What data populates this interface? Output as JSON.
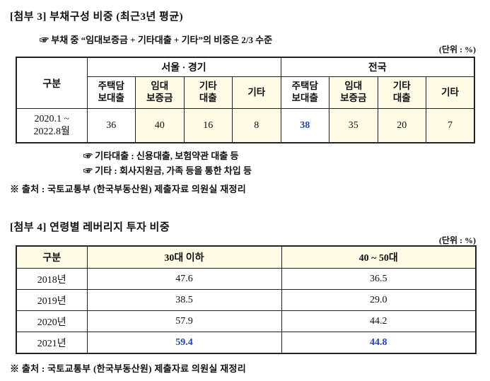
{
  "colors": {
    "highlight_bg": "#fffce6",
    "accent_text": "#2442c8"
  },
  "section1": {
    "title": "[첨부 3] 부채구성 비중 (최근3년 평균)",
    "note": "☞ 부채 중 “임대보증금 + 기타대출 + 기타”의 비중은 2/3 수준",
    "unit": "(단위 : %)",
    "table": {
      "corner": "구분",
      "regions": [
        "서울 · 경기",
        "전국"
      ],
      "sub_headers": [
        "주택담\n보대출",
        "임대\n보증금",
        "기타\n대출",
        "기타"
      ],
      "row_label": "2020.1 ~\n2022.8월",
      "seoul_values": [
        "36",
        "40",
        "16",
        "8"
      ],
      "nation_values": [
        "38",
        "35",
        "20",
        "7"
      ]
    },
    "footnotes": [
      "☞ 기타대출 : 신용대출, 보험약관 대출 등",
      "☞ 기타 : 회사지원금, 가족 등을 통한 차입 등"
    ],
    "source": "※ 출처 : 국토교통부 (한국부동산원) 제출자료 의원실 재정리"
  },
  "section2": {
    "title": "[첨부 4] 연령별 레버리지 투자 비중",
    "unit": "(단위 : %)",
    "table": {
      "headers": [
        "구분",
        "30대 이하",
        "40 ~ 50대"
      ],
      "rows": [
        {
          "label": "2018년",
          "under30": "47.6",
          "age4050": "36.5"
        },
        {
          "label": "2019년",
          "under30": "38.5",
          "age4050": "29.0"
        },
        {
          "label": "2020년",
          "under30": "57.9",
          "age4050": "44.2"
        },
        {
          "label": "2021년",
          "under30": "59.4",
          "age4050": "44.8"
        }
      ]
    },
    "source": "※ 출처 : 국토교통부 (한국부동산원) 제출자료 의원실 재정리"
  }
}
